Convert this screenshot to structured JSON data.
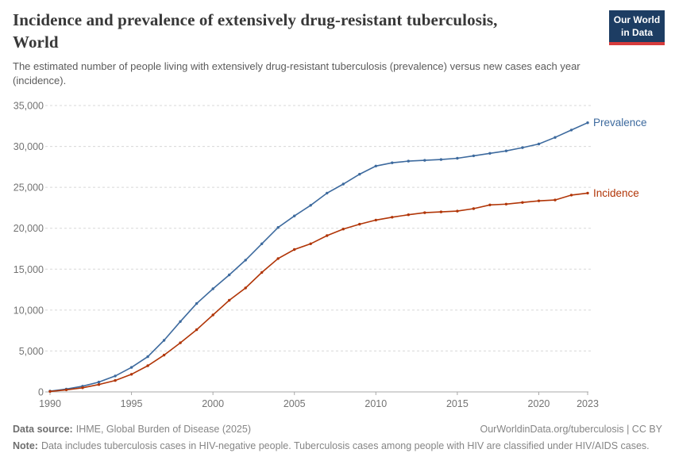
{
  "header": {
    "title_lines": [
      "Incidence and prevalence of extensively drug-resistant tuberculosis,",
      "World"
    ],
    "subtitle": "The estimated number of people living with extensively drug-resistant tuberculosis (prevalence) versus new cases each year (incidence).",
    "logo": {
      "line1": "Our World",
      "line2": "in Data",
      "bg": "#1d3d63",
      "accent": "#d73c3c"
    }
  },
  "chart_data": {
    "type": "line",
    "title": "Incidence and prevalence of extensively drug-resistant tuberculosis, World",
    "xlabel": "",
    "ylabel": "",
    "ylim": [
      0,
      35000
    ],
    "grid": "horizontal-dashed",
    "legend_position": "end-of-line",
    "x": [
      1990,
      1991,
      1992,
      1993,
      1994,
      1995,
      1996,
      1997,
      1998,
      1999,
      2000,
      2001,
      2002,
      2003,
      2004,
      2005,
      2006,
      2007,
      2008,
      2009,
      2010,
      2011,
      2012,
      2013,
      2014,
      2015,
      2016,
      2017,
      2018,
      2019,
      2020,
      2021,
      2022,
      2023
    ],
    "series": [
      {
        "name": "Prevalence",
        "color": "#3d6a9e",
        "values": [
          100,
          350,
          700,
          1200,
          1950,
          3000,
          4300,
          6300,
          8600,
          10800,
          12600,
          14300,
          16100,
          18100,
          20100,
          21500,
          22800,
          24300,
          25400,
          26600,
          27600,
          28000,
          28200,
          28300,
          28400,
          28550,
          28850,
          29150,
          29450,
          29850,
          30300,
          31100,
          32000,
          32900
        ]
      },
      {
        "name": "Incidence",
        "color": "#b13507",
        "values": [
          60,
          250,
          500,
          900,
          1400,
          2150,
          3200,
          4500,
          6000,
          7600,
          9400,
          11200,
          12700,
          14600,
          16300,
          17400,
          18100,
          19100,
          19900,
          20500,
          21000,
          21350,
          21650,
          21900,
          22000,
          22100,
          22400,
          22850,
          22950,
          23150,
          23350,
          23450,
          24050,
          24300
        ]
      }
    ],
    "y_ticks": [
      0,
      5000,
      10000,
      15000,
      20000,
      25000,
      30000,
      35000
    ],
    "y_tick_labels": [
      "0",
      "5,000",
      "10,000",
      "15,000",
      "20,000",
      "25,000",
      "30,000",
      "35,000"
    ],
    "x_ticks": [
      1990,
      1995,
      2000,
      2005,
      2010,
      2015,
      2020,
      2023
    ],
    "x_tick_labels": [
      "1990",
      "1995",
      "2000",
      "2005",
      "2010",
      "2015",
      "2020",
      "2023"
    ]
  },
  "footer": {
    "source_label": "Data source:",
    "source_text": "IHME, Global Burden of Disease (2025)",
    "link": "OurWorldinData.org/tuberculosis | CC BY",
    "note_label": "Note:",
    "note_text": "Data includes tuberculosis cases in HIV-negative people. Tuberculosis cases among people with HIV are classified under HIV/AIDS cases."
  }
}
